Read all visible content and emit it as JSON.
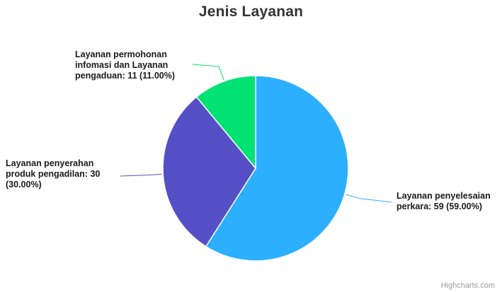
{
  "chart_data": {
    "type": "pie",
    "title": "Jenis Layanan",
    "slices": [
      {
        "name": "Layanan penyelesaian perkara",
        "value": 59,
        "percent": "59.00%",
        "color": "#2caffe"
      },
      {
        "name": "Layanan penyerahan produk pengadilan",
        "value": 30,
        "percent": "30.00%",
        "color": "#544fc5"
      },
      {
        "name": "Layanan permohonan infomasi dan Layanan pengaduan",
        "value": 11,
        "percent": "11.00%",
        "color": "#00e272"
      }
    ],
    "labels": [
      "Layanan penyelesaian perkara: 59 (59.00%)",
      "Layanan penyerahan produk pengadilan: 30 (30.00%)",
      "Layanan permohonan infomasi dan Layanan pengaduan: 11 (11.00%)"
    ]
  },
  "credits": "Highcharts.com"
}
